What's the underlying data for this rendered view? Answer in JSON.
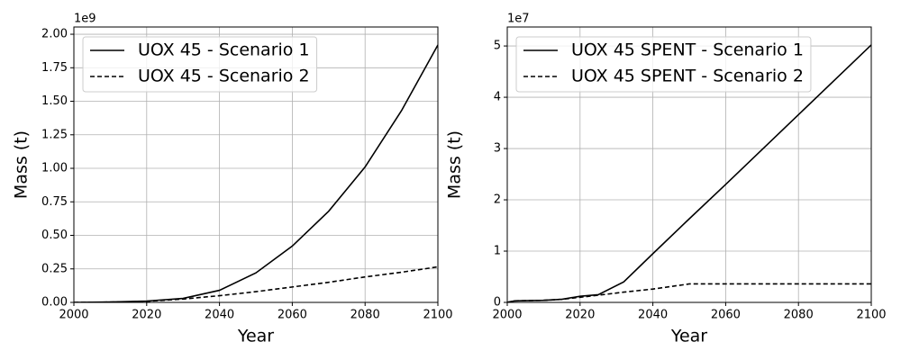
{
  "chart_data": [
    {
      "type": "line",
      "xlabel": "Year",
      "ylabel": "Mass (t)",
      "y_offset_label": "1e9",
      "x": [
        2000,
        2010,
        2020,
        2030,
        2040,
        2050,
        2060,
        2070,
        2080,
        2090,
        2100
      ],
      "series": [
        {
          "name": "UOX 45 - Scenario 1",
          "color": "#000000",
          "linestyle": "solid",
          "values": [
            0,
            0.003,
            0.01,
            0.03,
            0.09,
            0.22,
            0.42,
            0.68,
            1.01,
            1.43,
            1.92
          ]
        },
        {
          "name": "UOX 45 - Scenario 2",
          "color": "#000000",
          "linestyle": "dashed",
          "values": [
            0,
            0.002,
            0.008,
            0.025,
            0.05,
            0.08,
            0.115,
            0.15,
            0.19,
            0.225,
            0.265
          ]
        }
      ],
      "xlim": [
        2000,
        2100
      ],
      "xticks": [
        2000,
        2020,
        2040,
        2060,
        2080,
        2100
      ],
      "ylim": [
        0,
        2.054
      ],
      "yticks": [
        {
          "value": 0,
          "label": "0.00"
        },
        0.25,
        {
          "value": 0.5,
          "label": "0.50"
        },
        0.75,
        {
          "value": 1,
          "label": "1.00"
        },
        1.25,
        {
          "value": 1.5,
          "label": "1.50"
        },
        1.75,
        {
          "value": 2,
          "label": "2.00"
        }
      ],
      "grid": true,
      "legend": "upper left"
    },
    {
      "type": "line",
      "xlabel": "Year",
      "ylabel": "Mass (t)",
      "y_offset_label": "1e7",
      "x": [
        2000,
        2002,
        2010,
        2015,
        2020,
        2025,
        2032,
        2040,
        2050,
        2060,
        2080,
        2100
      ],
      "series": [
        {
          "name": "UOX 45 SPENT - Scenario 1",
          "color": "#000000",
          "linestyle": "solid",
          "values": [
            0,
            0.03,
            0.04,
            0.06,
            0.12,
            0.15,
            0.4,
            0.95,
            1.63,
            2.3,
            3.66,
            5.02
          ]
        },
        {
          "name": "UOX 45 SPENT - Scenario 2",
          "color": "#000000",
          "linestyle": "dashed",
          "values": [
            0,
            0.03,
            0.04,
            0.06,
            0.1,
            0.14,
            0.2,
            0.26,
            0.36,
            0.36,
            0.36,
            0.36
          ]
        }
      ],
      "xlim": [
        2000,
        2100
      ],
      "xticks": [
        2000,
        2020,
        2040,
        2060,
        2080,
        2100
      ],
      "ylim": [
        0,
        5.37
      ],
      "yticks": [
        0,
        1,
        2,
        3,
        4,
        5
      ],
      "grid": true,
      "legend": "upper left"
    }
  ]
}
